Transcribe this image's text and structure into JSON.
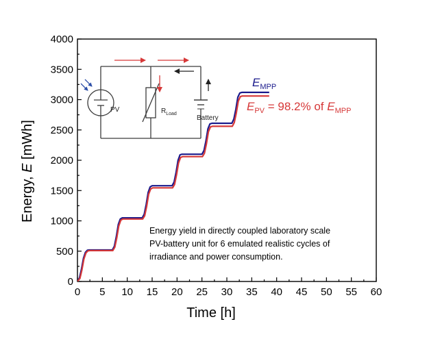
{
  "chart_data": {
    "type": "line",
    "xlabel": "Time [h]",
    "ylabel_prefix": "Energy, ",
    "ylabel_symbol": "E",
    "ylabel_unit": " [mWh]",
    "xlim": [
      0,
      60
    ],
    "ylim": [
      0,
      4000
    ],
    "xticks": [
      0,
      5,
      10,
      15,
      20,
      25,
      30,
      35,
      40,
      45,
      50,
      55,
      60
    ],
    "yticks": [
      0,
      500,
      1000,
      1500,
      2000,
      2500,
      3000,
      3500,
      4000
    ],
    "grid": false,
    "series": [
      {
        "name": "E_MPP",
        "color": "#1a1a8c",
        "x": [
          0,
          0.4,
          0.8,
          1.2,
          1.6,
          2.0,
          2.4,
          7.0,
          7.4,
          7.8,
          8.2,
          8.6,
          9.0,
          13.0,
          13.4,
          13.8,
          14.2,
          14.6,
          15.0,
          19.0,
          19.4,
          19.8,
          20.2,
          20.6,
          21.0,
          25.0,
          25.4,
          25.8,
          26.2,
          26.6,
          27.0,
          31.0,
          31.4,
          31.8,
          32.2,
          32.6,
          33.0,
          38.5
        ],
        "y": [
          0,
          60,
          200,
          380,
          480,
          515,
          520,
          520,
          580,
          740,
          940,
          1030,
          1050,
          1050,
          1110,
          1270,
          1470,
          1560,
          1580,
          1580,
          1640,
          1800,
          2000,
          2090,
          2100,
          2100,
          2160,
          2320,
          2520,
          2600,
          2610,
          2610,
          2680,
          2840,
          3040,
          3110,
          3120,
          3120
        ]
      },
      {
        "name": "E_PV",
        "color": "#d63838",
        "x": [
          0,
          0.5,
          0.9,
          1.3,
          1.7,
          2.1,
          2.5,
          7.1,
          7.5,
          7.9,
          8.3,
          8.7,
          9.1,
          13.1,
          13.5,
          13.9,
          14.3,
          14.7,
          15.1,
          19.1,
          19.5,
          19.9,
          20.3,
          20.7,
          21.1,
          25.1,
          25.5,
          25.9,
          26.3,
          26.7,
          27.1,
          31.1,
          31.5,
          31.9,
          32.3,
          32.7,
          33.1,
          38.5
        ],
        "y": [
          0,
          50,
          190,
          370,
          470,
          505,
          510,
          510,
          565,
          720,
          915,
          1010,
          1030,
          1030,
          1085,
          1240,
          1440,
          1525,
          1545,
          1545,
          1600,
          1760,
          1955,
          2045,
          2060,
          2060,
          2115,
          2270,
          2470,
          2550,
          2560,
          2560,
          2625,
          2780,
          2975,
          3050,
          3060,
          3060
        ]
      }
    ],
    "legend": {
      "empp": {
        "base": "E",
        "sub": "MPP"
      },
      "epv": {
        "base": "E",
        "sub": "PV",
        "text": " = 98.2% of ",
        "ref_base": "E",
        "ref_sub": "MPP"
      }
    },
    "annotation": [
      "Energy yield in directly coupled laboratory scale",
      "PV-battery unit for 6 emulated realistic cycles of",
      "irradiance and power consumption."
    ],
    "inset": {
      "pv_label": "PV",
      "rload_base": "R",
      "rload_sub": "Load",
      "battery_label": "Battery",
      "arrow_colors": {
        "red": "#d63838",
        "black": "#222222"
      }
    }
  }
}
